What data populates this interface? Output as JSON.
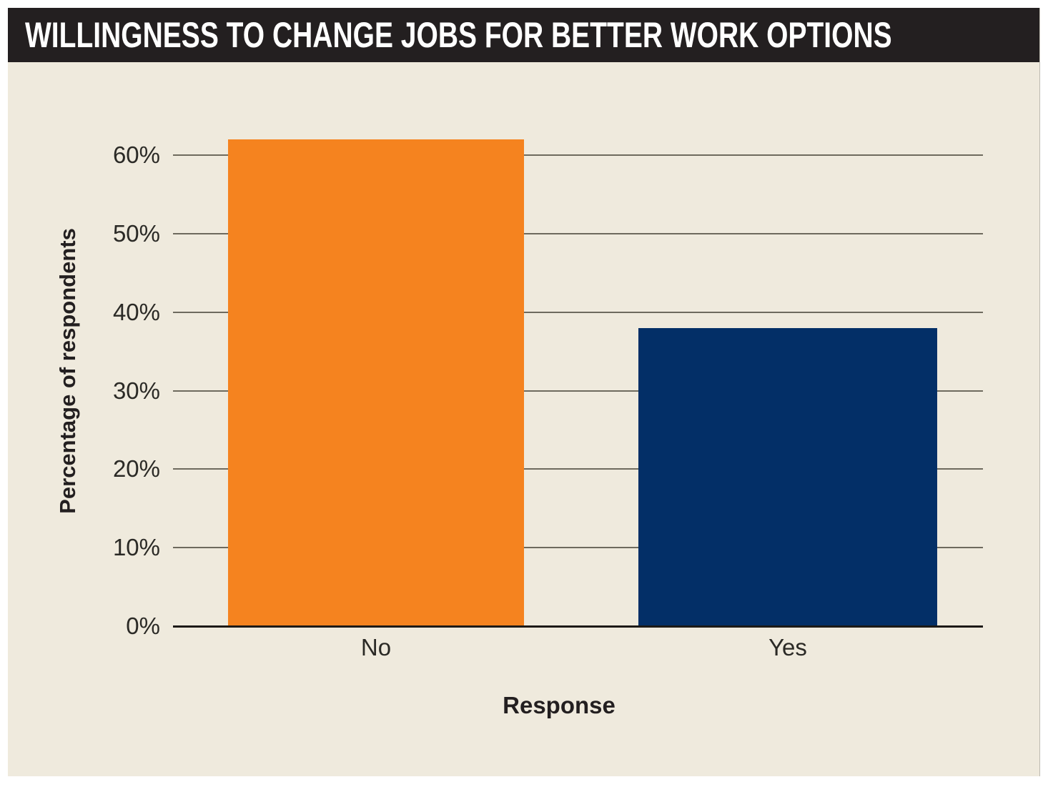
{
  "header": {
    "title": "WILLINGNESS TO CHANGE JOBS FOR BETTER WORK OPTIONS"
  },
  "chart_data": {
    "type": "bar",
    "title": "WILLINGNESS TO CHANGE JOBS FOR BETTER WORK OPTIONS",
    "categories": [
      "No",
      "Yes"
    ],
    "values": [
      62,
      38
    ],
    "value_unit": "%",
    "xlabel": "Response",
    "ylabel": "Percentage of respondents",
    "ylim": [
      0,
      65
    ],
    "ytick_step": 10,
    "yticks": [
      "0%",
      "10%",
      "20%",
      "30%",
      "40%",
      "50%",
      "60%"
    ],
    "grid": true,
    "legend": false,
    "bar_colors": [
      "#f5831f",
      "#032f67"
    ],
    "colors": {
      "panel_background": "#efeadd",
      "title_bar_background": "#231f20",
      "title_text": "#ffffff",
      "gridline": "#6e6a5e",
      "axis_line": "#1d1a17",
      "label_text": "#2b2a26"
    }
  }
}
